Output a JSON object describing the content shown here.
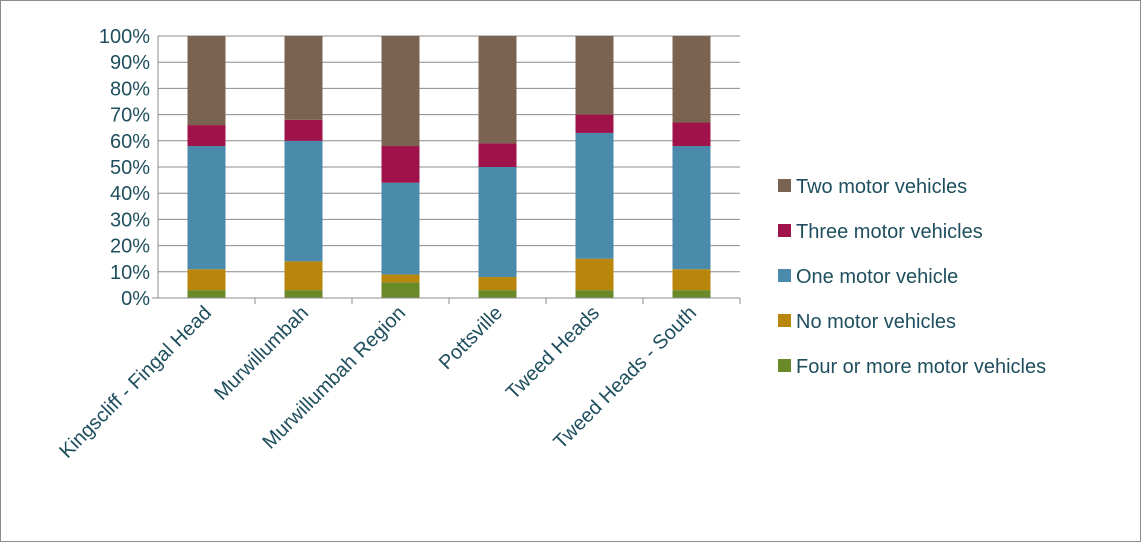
{
  "chart_data": {
    "type": "bar",
    "stacked": true,
    "percent": true,
    "categories": [
      "Kingscliff - Fingal Head",
      "Murwillumbah",
      "Murwillumbah Region",
      "Pottsville",
      "Tweed Heads",
      "Tweed Heads - South"
    ],
    "ylim": [
      0,
      100
    ],
    "yticks": [
      "0%",
      "10%",
      "20%",
      "30%",
      "40%",
      "50%",
      "60%",
      "70%",
      "80%",
      "90%",
      "100%"
    ],
    "grid": true,
    "legend_position": "right",
    "series": [
      {
        "name": "Four or more motor vehicles",
        "color": "#6a8a2a",
        "values": [
          3,
          3,
          6,
          3,
          3,
          3
        ]
      },
      {
        "name": "No motor vehicles",
        "color": "#b8860b",
        "values": [
          8,
          11,
          3,
          5,
          12,
          8
        ]
      },
      {
        "name": "One motor vehicle",
        "color": "#4a8aab",
        "values": [
          47,
          46,
          35,
          42,
          48,
          47
        ]
      },
      {
        "name": "Three motor vehicles",
        "color": "#a0124a",
        "values": [
          8,
          8,
          14,
          9,
          7,
          9
        ]
      },
      {
        "name": "Two motor vehicles",
        "color": "#7b6352",
        "values": [
          34,
          32,
          42,
          41,
          30,
          33
        ]
      }
    ],
    "legend_order": [
      "Two motor vehicles",
      "Three motor vehicles",
      "One motor vehicle",
      "No motor vehicles",
      "Four or more motor vehicles"
    ]
  }
}
